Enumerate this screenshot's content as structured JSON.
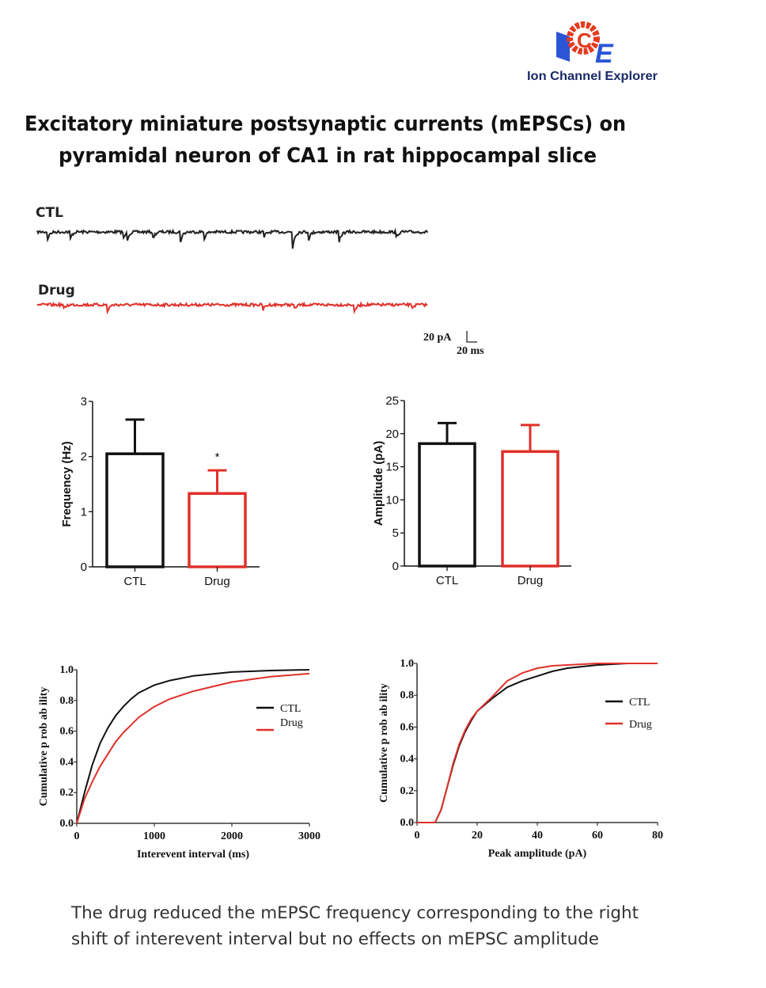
{
  "logo": {
    "text": "Ion Channel Explorer",
    "mark": "ICE",
    "colors": {
      "blue": "#2b55d6",
      "red": "#e53a1f",
      "dark": "#1a2a66"
    }
  },
  "title": {
    "line1": "Excitatory miniature postsynaptic currents (mEPSCs) on",
    "line2": "pyramidal neuron of CA1 in rat hippocampal slice"
  },
  "traces": {
    "ctl_label": "CTL",
    "drug_label": "Drug",
    "scale_y": "20 pA",
    "scale_x": "20 ms",
    "colors": {
      "CTL": "#222222",
      "Drug": "#e0302a"
    }
  },
  "caption": {
    "line1": "The drug reduced the mEPSC frequency corresponding to the right",
    "line2": "shift of interevent interval but no effects on mEPSC amplitude"
  },
  "chart_data": [
    {
      "type": "bar",
      "categories": [
        "CTL",
        "Drug"
      ],
      "values": [
        2.05,
        1.33
      ],
      "error_upper": [
        2.67,
        1.75
      ],
      "ylabel": "Frequency (Hz)",
      "ylim": [
        0,
        3
      ],
      "yticks": [
        "0",
        "1",
        "2",
        "3"
      ],
      "annotation": "*",
      "colors": [
        "#111111",
        "#e0302a"
      ]
    },
    {
      "type": "bar",
      "categories": [
        "CTL",
        "Drug"
      ],
      "values": [
        18.5,
        17.3
      ],
      "error_upper": [
        21.6,
        21.3
      ],
      "ylabel": "Amplitude (pA)",
      "ylim": [
        0,
        25
      ],
      "yticks": [
        "0",
        "5",
        "10",
        "15",
        "20",
        "25"
      ],
      "colors": [
        "#111111",
        "#e0302a"
      ]
    },
    {
      "type": "line",
      "xlabel": "Interevent interval (ms)",
      "ylabel": "Cumulative p rob ab ility",
      "xlim": [
        0,
        3000
      ],
      "ylim": [
        0,
        1
      ],
      "xticks": [
        "0",
        "1000",
        "2000",
        "3000"
      ],
      "yticks": [
        "0.0",
        "0.2",
        "0.4",
        "0.6",
        "0.8",
        "1.0"
      ],
      "legend": "right",
      "x": [
        0,
        50,
        100,
        200,
        300,
        400,
        500,
        600,
        700,
        800,
        1000,
        1200,
        1500,
        2000,
        2500,
        3000
      ],
      "series": [
        {
          "name": "CTL",
          "color": "#111111",
          "values": [
            0,
            0.1,
            0.2,
            0.38,
            0.52,
            0.62,
            0.7,
            0.76,
            0.81,
            0.85,
            0.9,
            0.93,
            0.96,
            0.985,
            0.995,
            1.0
          ]
        },
        {
          "name": "Drug",
          "color": "#e0302a",
          "values": [
            0,
            0.08,
            0.16,
            0.27,
            0.37,
            0.45,
            0.53,
            0.59,
            0.64,
            0.69,
            0.76,
            0.81,
            0.86,
            0.92,
            0.955,
            0.975
          ]
        }
      ]
    },
    {
      "type": "line",
      "xlabel": "Peak amplitude (pA)",
      "ylabel": "Cumulative p rob ab ility",
      "xlim": [
        0,
        80
      ],
      "ylim": [
        0,
        1
      ],
      "xticks": [
        "0",
        "20",
        "40",
        "60",
        "80"
      ],
      "yticks": [
        "0.0",
        "0.2",
        "0.4",
        "0.6",
        "0.8",
        "1.0"
      ],
      "legend": "right",
      "x": [
        6,
        8,
        10,
        12,
        14,
        16,
        18,
        20,
        25,
        30,
        35,
        40,
        45,
        50,
        55,
        60,
        70,
        80
      ],
      "series": [
        {
          "name": "CTL",
          "color": "#111111",
          "values": [
            0,
            0.08,
            0.22,
            0.36,
            0.48,
            0.57,
            0.64,
            0.7,
            0.78,
            0.85,
            0.89,
            0.92,
            0.95,
            0.97,
            0.98,
            0.99,
            1.0,
            1.0
          ]
        },
        {
          "name": "Drug",
          "color": "#e0302a",
          "values": [
            0,
            0.08,
            0.22,
            0.37,
            0.49,
            0.58,
            0.65,
            0.7,
            0.79,
            0.89,
            0.94,
            0.97,
            0.985,
            0.99,
            0.995,
            1.0,
            1.0,
            1.0
          ]
        }
      ]
    }
  ]
}
